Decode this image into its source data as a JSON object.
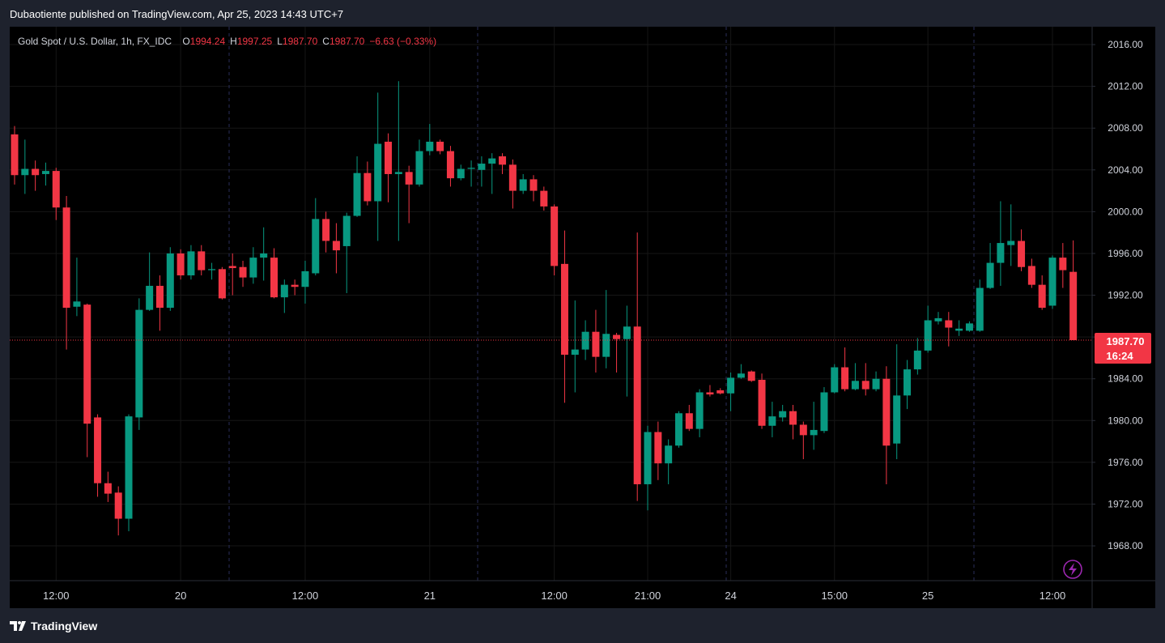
{
  "header": {
    "publisher": "Dubaotiente published on TradingView.com, Apr 25, 2023 14:43 UTC+7"
  },
  "chart_data": {
    "type": "candlestick",
    "title": "Gold Spot / U.S. Dollar, 1h, FX_IDC",
    "ohlc_legend": [
      {
        "key": "O",
        "value": "1994.24"
      },
      {
        "key": "H",
        "value": "1997.25"
      },
      {
        "key": "L",
        "value": "1987.70"
      },
      {
        "key": "C",
        "value": "1987.70"
      }
    ],
    "change": "−6.63 (−0.33%)",
    "categories": [
      null,
      null,
      null,
      null,
      "12:00",
      null,
      null,
      null,
      null,
      null,
      null,
      null,
      null,
      null,
      null,
      null,
      "20",
      null,
      null,
      null,
      null,
      null,
      null,
      null,
      null,
      null,
      null,
      null,
      "12:00",
      null,
      null,
      null,
      null,
      null,
      null,
      null,
      null,
      null,
      null,
      null,
      "21",
      null,
      null,
      null,
      null,
      null,
      null,
      null,
      null,
      null,
      null,
      null,
      "12:00",
      null,
      null,
      null,
      null,
      null,
      null,
      null,
      null,
      "21:00",
      null,
      null,
      null,
      null,
      null,
      null,
      null,
      "24",
      null,
      null,
      null,
      null,
      null,
      null,
      null,
      null,
      null,
      "15:00",
      null,
      null,
      null,
      null,
      null,
      null,
      null,
      null,
      "25",
      null,
      null,
      null,
      null,
      null,
      null,
      null,
      null,
      null,
      null,
      null,
      "12:00",
      null,
      null
    ],
    "open": [
      2007.4,
      2003.5,
      2004.1,
      2003.6,
      2003.9,
      2000.4,
      1990.9,
      1991.1,
      1980.3,
      1974.0,
      1973.1,
      1970.6,
      1980.3,
      1990.6,
      1992.9,
      1990.8,
      1996.0,
      1993.9,
      1996.2,
      1994.4,
      1994.5,
      1994.8,
      1994.7,
      1993.7,
      1995.6,
      1995.6,
      1991.8,
      1993.0,
      1992.8,
      1994.1,
      1999.3,
      1997.2,
      1996.7,
      1999.6,
      2003.7,
      2001.0,
      2006.7,
      2003.6,
      2003.8,
      2002.6,
      2005.8,
      2006.7,
      2005.8,
      2003.2,
      2004.1,
      2004.0,
      2004.6,
      2005.3,
      2004.5,
      2002.0,
      2003.1,
      2002.0,
      2000.5,
      1995.0,
      1986.3,
      1986.8,
      1988.5,
      1986.1,
      1988.2,
      1987.8,
      1989.0,
      1973.9,
      1978.9,
      1975.9,
      1977.6,
      1980.7,
      1979.2,
      1982.7,
      1982.9,
      1982.6,
      1984.1,
      1984.7,
      1983.9,
      1979.5,
      1980.3,
      1980.9,
      1979.6,
      1978.6,
      1979.0,
      1982.7,
      1985.1,
      1983.0,
      1983.8,
      1983.0,
      1984.0,
      1977.8,
      1982.4,
      1984.9,
      1986.7,
      1989.5,
      1989.6,
      1988.6,
      1988.6,
      1988.6,
      1992.7,
      1995.1,
      1996.8,
      1997.2,
      1994.8,
      1993.0,
      1991.0,
      1995.6,
      1994.24
    ],
    "high": [
      2008.2,
      2006.9,
      2004.9,
      2004.7,
      2004.2,
      2001.5,
      1995.6,
      1991.2,
      1980.6,
      1975.1,
      1973.7,
      1980.6,
      1991.7,
      1996.1,
      1993.9,
      1996.6,
      1996.4,
      1996.8,
      1996.8,
      1995.1,
      1994.7,
      1996.0,
      1995.3,
      1996.6,
      1998.5,
      1996.5,
      1993.5,
      1993.5,
      1995.3,
      2001.3,
      2000.0,
      1998.9,
      1999.9,
      2005.3,
      2004.8,
      2011.4,
      2007.5,
      2012.5,
      2004.4,
      2006.9,
      2008.4,
      2006.9,
      2006.3,
      2004.5,
      2004.9,
      2005.3,
      2005.6,
      2005.6,
      2005.0,
      2003.6,
      2003.5,
      2002.4,
      2000.7,
      1998.2,
      1991.5,
      1989.6,
      1990.6,
      1992.5,
      1988.4,
      1991.0,
      1998.0,
      1979.5,
      1979.9,
      1978.2,
      1980.9,
      1981.5,
      1983.0,
      1983.4,
      1983.1,
      1984.6,
      1985.4,
      1984.8,
      1984.5,
      1981.8,
      1981.5,
      1981.5,
      1979.9,
      1981.8,
      1983.2,
      1985.4,
      1987.0,
      1985.5,
      1985.5,
      1984.7,
      1985.2,
      1987.3,
      1985.8,
      1987.9,
      1991.0,
      1990.4,
      1990.4,
      1989.6,
      1989.5,
      1993.5,
      1997.0,
      2001.0,
      2000.7,
      1998.3,
      1995.5,
      1993.9,
      1995.8,
      1997.0,
      1997.25
    ],
    "low": [
      2002.6,
      2001.7,
      2002.0,
      2002.5,
      1999.2,
      1986.8,
      1990.0,
      1976.5,
      1972.7,
      1972.2,
      1969.0,
      1969.4,
      1979.1,
      1990.5,
      1988.6,
      1990.5,
      1993.5,
      1993.5,
      1993.9,
      1993.5,
      1991.6,
      1992.0,
      1992.8,
      1993.1,
      1993.4,
      1991.7,
      1990.3,
      1992.0,
      1991.2,
      1993.9,
      1996.1,
      1994.1,
      1992.2,
      1999.5,
      2000.6,
      1997.2,
      2000.9,
      1997.2,
      1998.9,
      2002.4,
      2005.4,
      2005.5,
      2002.4,
      2003.0,
      2002.4,
      2002.4,
      2001.7,
      2003.6,
      2000.3,
      2001.7,
      2001.0,
      2000.1,
      1993.9,
      1981.7,
      1982.7,
      1985.8,
      1984.6,
      1985.0,
      1984.6,
      1982.3,
      1972.3,
      1971.4,
      1974.3,
      1973.9,
      1977.4,
      1979.0,
      1978.4,
      1982.3,
      1982.5,
      1980.9,
      1984.0,
      1983.7,
      1979.2,
      1978.4,
      1979.9,
      1978.2,
      1976.3,
      1977.2,
      1978.8,
      1982.6,
      1982.8,
      1982.9,
      1982.4,
      1982.8,
      1973.9,
      1976.3,
      1981.1,
      1984.4,
      1986.5,
      1989.2,
      1987.1,
      1988.1,
      1988.5,
      1988.5,
      1992.6,
      1992.9,
      1994.8,
      1994.3,
      1992.7,
      1990.6,
      1990.7,
      1992.7,
      1987.7
    ],
    "close": [
      2003.5,
      2004.1,
      2003.5,
      2003.9,
      2000.4,
      1990.8,
      1991.4,
      1979.7,
      1974.0,
      1973.0,
      1970.6,
      1980.4,
      1990.6,
      1992.9,
      1990.8,
      1996.0,
      1993.9,
      1996.2,
      1994.4,
      1994.5,
      1991.7,
      1994.6,
      1993.7,
      1995.6,
      1996.0,
      1991.8,
      1993.0,
      1992.8,
      1994.3,
      1999.3,
      1997.2,
      1996.3,
      1999.6,
      2003.7,
      2001.0,
      2006.5,
      2003.6,
      2003.8,
      2002.6,
      2005.8,
      2006.7,
      2005.8,
      2003.2,
      2004.1,
      2004.2,
      2004.6,
      2005.1,
      2004.5,
      2002.0,
      2003.1,
      2002.0,
      2000.5,
      1994.8,
      1986.3,
      1986.8,
      1988.5,
      1986.1,
      1988.3,
      1987.8,
      1989.0,
      1973.9,
      1978.9,
      1975.9,
      1977.6,
      1980.7,
      1979.2,
      1982.7,
      1982.5,
      1982.6,
      1984.1,
      1984.5,
      1983.8,
      1979.5,
      1980.4,
      1980.9,
      1979.6,
      1978.6,
      1979.1,
      1982.7,
      1985.1,
      1983.0,
      1983.8,
      1983.0,
      1984.0,
      1977.6,
      1982.4,
      1984.9,
      1986.7,
      1989.6,
      1989.8,
      1988.9,
      1988.8,
      1989.3,
      1992.7,
      1995.1,
      1997.0,
      1997.2,
      1994.7,
      1993.0,
      1990.8,
      1995.6,
      1994.4,
      1987.7
    ],
    "up_color": "#089981",
    "down_color": "#f23645",
    "ylim": [
      1964.67,
      2017.71
    ],
    "yticks": [
      {
        "value": 1968,
        "label": "1968.00"
      },
      {
        "value": 1972,
        "label": "1972.00"
      },
      {
        "value": 1976,
        "label": "1976.00"
      },
      {
        "value": 1980,
        "label": "1980.00"
      },
      {
        "value": 1984,
        "label": "1984.00"
      },
      {
        "value": 1988,
        "label": "1988.00"
      },
      {
        "value": 1992,
        "label": "1992.00"
      },
      {
        "value": 1996,
        "label": "1996.00"
      },
      {
        "value": 2000,
        "label": "2000.00"
      },
      {
        "value": 2004,
        "label": "2004.00"
      },
      {
        "value": 2008,
        "label": "2008.00"
      },
      {
        "value": 2012,
        "label": "2012.00"
      },
      {
        "value": 2016,
        "label": "2016.00"
      }
    ],
    "last_price": {
      "value": 1987.7,
      "label": "1987.70",
      "countdown": "16:24"
    },
    "grid": true
  },
  "footer": {
    "brand": "TradingView"
  }
}
